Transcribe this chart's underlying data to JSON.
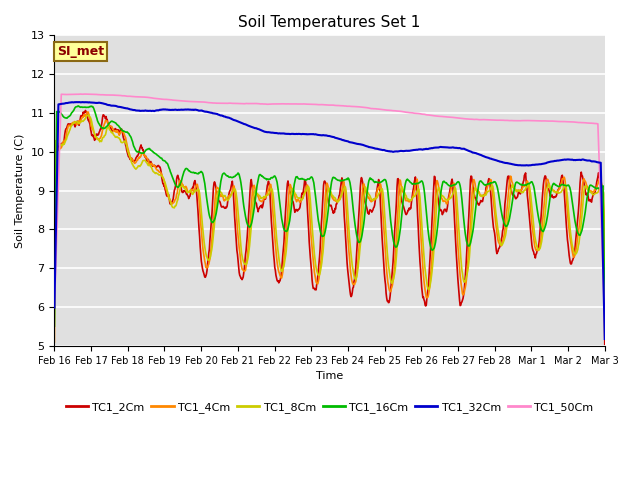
{
  "title": "Soil Temperatures Set 1",
  "xlabel": "Time",
  "ylabel": "Soil Temperature (C)",
  "ylim": [
    5.0,
    13.0
  ],
  "yticks": [
    5.0,
    6.0,
    7.0,
    8.0,
    9.0,
    10.0,
    11.0,
    12.0,
    13.0
  ],
  "bg_color": "#e0e0e0",
  "grid_color": "#ffffff",
  "annotation_text": "SI_met",
  "annotation_color": "#8B0000",
  "annotation_bg": "#ffff99",
  "annotation_border": "#8B6914",
  "series": {
    "TC1_2Cm": {
      "color": "#cc0000",
      "lw": 1.2
    },
    "TC1_4Cm": {
      "color": "#ff8800",
      "lw": 1.2
    },
    "TC1_8Cm": {
      "color": "#cccc00",
      "lw": 1.2
    },
    "TC1_16Cm": {
      "color": "#00bb00",
      "lw": 1.2
    },
    "TC1_32Cm": {
      "color": "#0000cc",
      "lw": 1.5
    },
    "TC1_50Cm": {
      "color": "#ff88cc",
      "lw": 1.2
    }
  },
  "xtick_labels": [
    "Feb 16",
    "Feb 17",
    "Feb 18",
    "Feb 19",
    "Feb 20",
    "Feb 21",
    "Feb 22",
    "Feb 23",
    "Feb 24",
    "Feb 25",
    "Feb 26",
    "Feb 27",
    "Feb 28",
    "Mar 1",
    "Mar 2",
    "Mar 3"
  ],
  "n_points": 960
}
